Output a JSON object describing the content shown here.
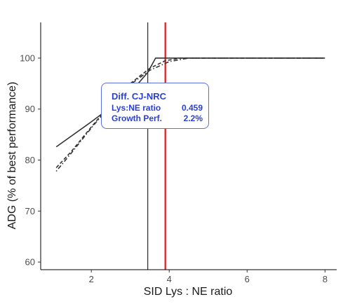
{
  "chart_data": {
    "type": "line",
    "xlabel": "SID Lys : NE ratio",
    "ylabel": "ADG (% of best performance)",
    "xlim": [
      0.7,
      8.3
    ],
    "ylim": [
      58.5,
      107
    ],
    "x_ticks": [
      2,
      4,
      6,
      8
    ],
    "y_ticks": [
      60,
      70,
      80,
      90,
      100
    ],
    "grid": false,
    "series": [
      {
        "style": "solid",
        "color": "#333333",
        "points": [
          [
            1.1,
            82.6
          ],
          [
            2.0,
            87.5
          ],
          [
            3.0,
            93.2
          ],
          [
            3.45,
            97.2
          ],
          [
            3.65,
            100
          ],
          [
            8.0,
            100
          ]
        ]
      },
      {
        "style": "dashed",
        "color": "#333333",
        "points": [
          [
            1.1,
            78.5
          ],
          [
            1.5,
            81.8
          ],
          [
            2.0,
            86.5
          ],
          [
            2.5,
            91.0
          ],
          [
            3.0,
            95.0
          ],
          [
            3.5,
            98.0
          ],
          [
            3.9,
            99.5
          ],
          [
            4.3,
            100
          ],
          [
            8.0,
            100
          ]
        ]
      },
      {
        "style": "dotdash",
        "color": "#333333",
        "points": [
          [
            1.1,
            77.8
          ],
          [
            1.5,
            81.5
          ],
          [
            2.0,
            86.3
          ],
          [
            2.5,
            90.8
          ],
          [
            3.0,
            94.8
          ],
          [
            3.5,
            97.6
          ],
          [
            4.0,
            99.3
          ],
          [
            4.5,
            100
          ],
          [
            8.0,
            100
          ]
        ]
      }
    ],
    "vlines": [
      {
        "x": 3.45,
        "color": "#000000"
      },
      {
        "x": 3.9,
        "color": "#e41a1c"
      }
    ]
  },
  "tooltip": {
    "title": "Diff. CJ-NRC",
    "rows": [
      {
        "label": "Lys:NE ratio",
        "value": "0.459"
      },
      {
        "label": "Growth Perf.",
        "value": "2.2%"
      }
    ]
  }
}
